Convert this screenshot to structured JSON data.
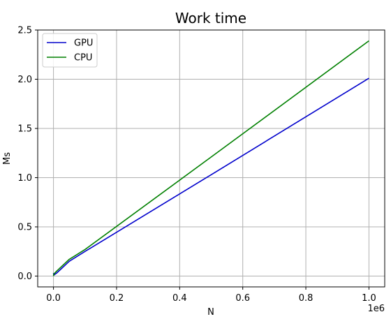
{
  "chart_data": {
    "type": "line",
    "title": "Work time",
    "xlabel": "N",
    "ylabel": "Ms",
    "x_offset_label": "1e6",
    "xlim": [
      -0.05,
      1.05
    ],
    "ylim": [
      -0.11,
      2.5
    ],
    "x_ticks": [
      0.0,
      0.2,
      0.4,
      0.6,
      0.8,
      1.0
    ],
    "x_tick_labels": [
      "0.0",
      "0.2",
      "0.4",
      "0.6",
      "0.8",
      "1.0"
    ],
    "y_ticks": [
      0.0,
      0.5,
      1.0,
      1.5,
      2.0,
      2.5
    ],
    "y_tick_labels": [
      "0.0",
      "0.5",
      "1.0",
      "1.5",
      "2.0",
      "2.5"
    ],
    "grid": true,
    "legend_position": "top-left",
    "series": [
      {
        "name": "GPU",
        "color": "#0000cc",
        "x": [
          0.0,
          0.001,
          0.01,
          0.05,
          0.1,
          0.5,
          1.0
        ],
        "y": [
          0.03,
          0.01,
          0.03,
          0.15,
          0.25,
          1.03,
          2.01
        ]
      },
      {
        "name": "CPU",
        "color": "#008000",
        "x": [
          0.0,
          0.001,
          0.01,
          0.05,
          0.1,
          0.5,
          1.0
        ],
        "y": [
          0.0,
          0.02,
          0.05,
          0.17,
          0.27,
          1.21,
          2.39
        ]
      }
    ]
  }
}
